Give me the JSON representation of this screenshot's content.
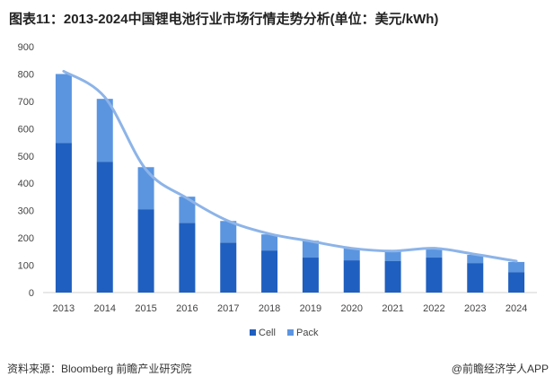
{
  "title": "图表11：2013-2024中国锂电池行业市场行情走势分析(单位：美元/kWh)",
  "footer": {
    "source": "资料来源：Bloomberg 前瞻产业研究院",
    "brand": "@前瞻经济学人APP"
  },
  "chart_data": {
    "type": "bar",
    "stacked": true,
    "categories": [
      "2013",
      "2014",
      "2015",
      "2016",
      "2017",
      "2018",
      "2019",
      "2020",
      "2021",
      "2022",
      "2023",
      "2024"
    ],
    "series": [
      {
        "name": "Cell",
        "color": "#1f5fbf",
        "values": [
          548,
          479,
          305,
          255,
          183,
          154,
          128,
          118,
          115,
          128,
          108,
          75
        ]
      },
      {
        "name": "Pack",
        "color": "#5b95e0",
        "values": [
          252,
          230,
          154,
          96,
          79,
          59,
          62,
          44,
          36,
          33,
          30,
          37
        ]
      }
    ],
    "line": {
      "color": "#8db4e8",
      "values": [
        810,
        715,
        450,
        345,
        262,
        215,
        188,
        162,
        152,
        162,
        140,
        115
      ]
    },
    "ylim": [
      0,
      900
    ],
    "yticks": [
      "0",
      "100",
      "200",
      "300",
      "400",
      "500",
      "600",
      "700",
      "800",
      "900"
    ],
    "grid": false,
    "legend": "bottom"
  }
}
